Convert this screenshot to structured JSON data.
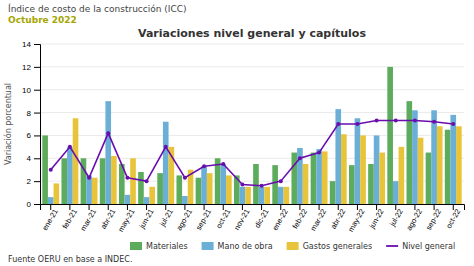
{
  "chart_data": {
    "type": "bar",
    "title": "Variaciones nivel general y capítulos",
    "annotations": [
      "Índice de costo de la construcción (ICC)",
      "Octubre 2022",
      "Fuente OERU en base a INDEC."
    ],
    "ylabel": "Variación porcentual",
    "categories": [
      "ene-21",
      "feb-21",
      "mar-21",
      "abr-21",
      "may-21",
      "jun-21",
      "jul-21",
      "ago-21",
      "sep-21",
      "oct-21",
      "nov-21",
      "dic-21",
      "ene-22",
      "feb-22",
      "mar-22",
      "abr-22",
      "may-22",
      "jun-22",
      "jul-22",
      "ago-22",
      "sep-22",
      "oct-22"
    ],
    "series": [
      {
        "name": "Materiales",
        "type": "bar",
        "color": "#5dab5d",
        "values": [
          6.0,
          4.0,
          4.0,
          4.0,
          3.5,
          2.8,
          2.7,
          2.5,
          2.3,
          4.0,
          2.5,
          3.5,
          3.4,
          4.5,
          4.5,
          2.0,
          3.4,
          3.5,
          12.0,
          9.0,
          4.5,
          6.5
        ]
      },
      {
        "name": "Mano de obra",
        "type": "bar",
        "color": "#6baed6",
        "values": [
          0.6,
          5.0,
          2.5,
          9.0,
          0.8,
          0.6,
          7.2,
          0.7,
          3.3,
          3.5,
          1.5,
          1.5,
          1.5,
          4.9,
          4.8,
          8.3,
          7.5,
          6.0,
          2.0,
          8.2,
          8.2,
          7.8
        ]
      },
      {
        "name": "Gastos generales",
        "type": "bar",
        "color": "#e8c43a",
        "values": [
          1.8,
          7.5,
          2.3,
          4.2,
          4.0,
          1.5,
          5.0,
          3.0,
          2.7,
          2.5,
          1.5,
          1.5,
          1.5,
          3.5,
          4.6,
          6.1,
          6.0,
          4.5,
          5.0,
          5.8,
          6.8,
          6.8
        ]
      },
      {
        "name": "Nivel general",
        "type": "line",
        "color": "#6a0dad",
        "marker": "circle",
        "values": [
          3.0,
          5.0,
          2.3,
          6.2,
          2.3,
          2.0,
          5.0,
          2.3,
          3.3,
          3.5,
          1.7,
          1.6,
          2.0,
          4.0,
          4.5,
          7.0,
          7.0,
          7.3,
          7.3,
          7.3,
          7.2,
          7.0
        ]
      }
    ],
    "ylim": [
      0,
      14
    ],
    "yticks": [
      0,
      2,
      4,
      6,
      8,
      10,
      12,
      14
    ],
    "grid": true,
    "legend": "bottom"
  }
}
